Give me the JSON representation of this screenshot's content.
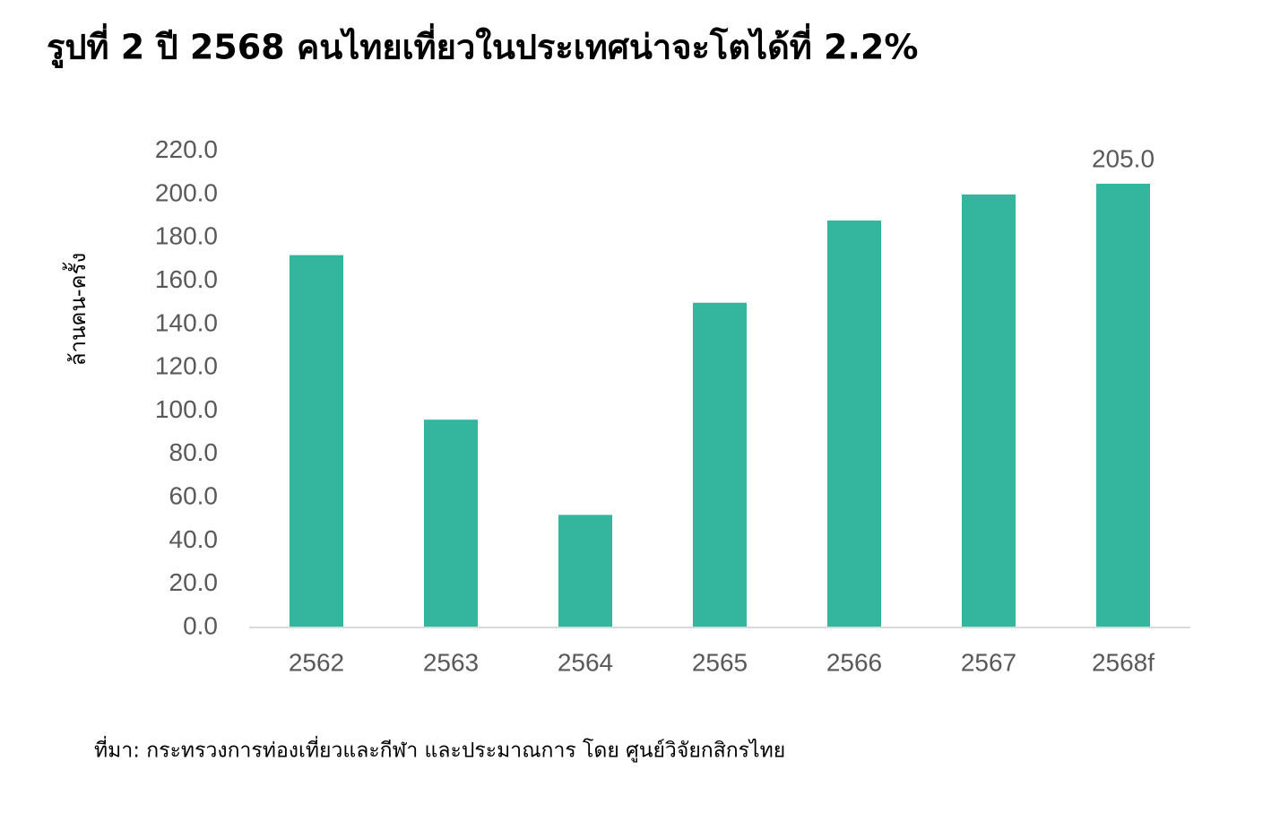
{
  "chart_data": {
    "type": "bar",
    "title": "รูปที่ 2 ปี 2568 คนไทยเที่ยวในประเทศน่าจะโตได้ที่ 2.2%",
    "y_label": "ล้านคน-ครั้ง",
    "source": "ที่มา: กระทรวงการท่องเที่ยวและกีฬา และประมาณการ โดย ศูนย์วิจัยกสิกรไทย",
    "categories": [
      "2562",
      "2563",
      "2564",
      "2565",
      "2566",
      "2567",
      "2568f"
    ],
    "values": [
      172,
      96,
      52,
      150,
      188,
      200,
      205
    ],
    "value_labels": [
      null,
      null,
      null,
      null,
      null,
      null,
      "205.0"
    ],
    "color": "#33b59e",
    "ylim": [
      0,
      220
    ],
    "yticks": [
      {
        "value": 0,
        "label": "0.0"
      },
      {
        "value": 20,
        "label": "20.0"
      },
      {
        "value": 40,
        "label": "40.0"
      },
      {
        "value": 60,
        "label": "60.0"
      },
      {
        "value": 80,
        "label": "80.0"
      },
      {
        "value": 100,
        "label": "100.0"
      },
      {
        "value": 120,
        "label": "120.0"
      },
      {
        "value": 140,
        "label": "140.0"
      },
      {
        "value": 160,
        "label": "160.0"
      },
      {
        "value": 180,
        "label": "180.0"
      },
      {
        "value": 200,
        "label": "200.0"
      },
      {
        "value": 220,
        "label": "220.0"
      }
    ],
    "grid": false
  }
}
